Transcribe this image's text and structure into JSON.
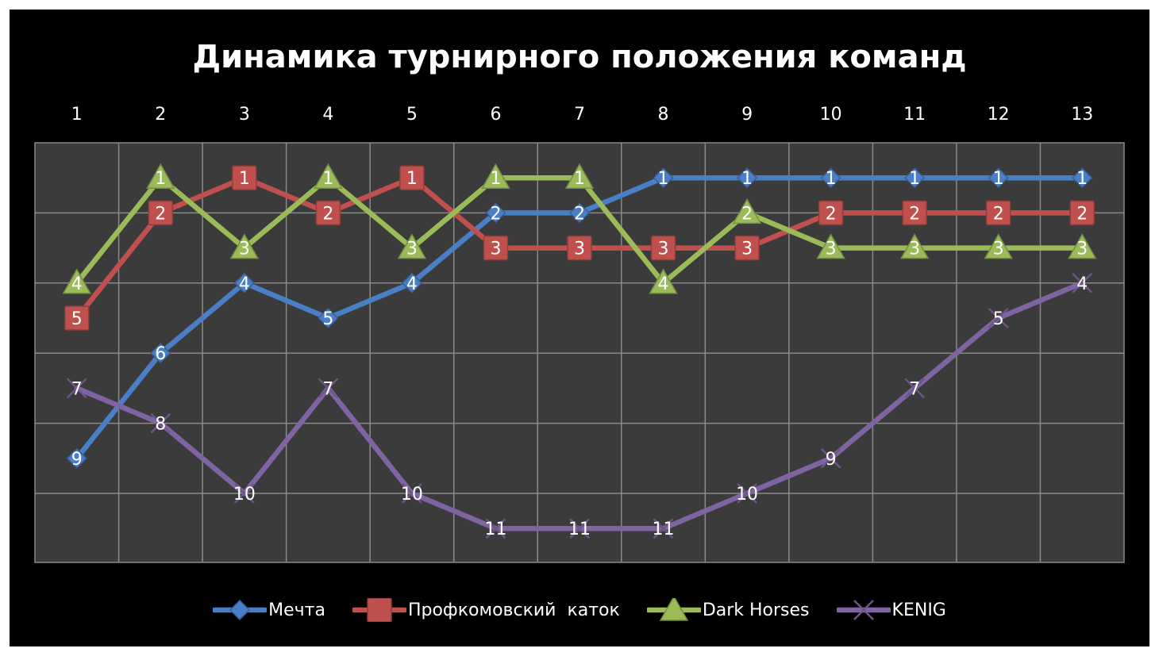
{
  "chart_data": {
    "type": "line",
    "title": "Динамика турнирного положения команд",
    "x": [
      "1",
      "2",
      "3",
      "4",
      "5",
      "6",
      "7",
      "8",
      "9",
      "10",
      "11",
      "12",
      "13"
    ],
    "ylim": [
      1,
      12
    ],
    "y_reversed": true,
    "grid": true,
    "legend_position": "bottom",
    "series": [
      {
        "name": "Мечта",
        "color": "#4a7ec6",
        "marker": "diamond",
        "values": [
          9,
          6,
          4,
          5,
          4,
          2,
          2,
          1,
          1,
          1,
          1,
          1,
          1
        ]
      },
      {
        "name": "Профкомовский  каток",
        "color": "#c0504d",
        "marker": "square",
        "values": [
          5,
          2,
          1,
          2,
          1,
          3,
          3,
          3,
          3,
          2,
          2,
          2,
          2
        ]
      },
      {
        "name": "Dark Horses",
        "color": "#9bbb59",
        "marker": "triangle",
        "values": [
          4,
          1,
          3,
          1,
          3,
          1,
          1,
          4,
          2,
          3,
          3,
          3,
          3
        ]
      },
      {
        "name": "KENIG",
        "color": "#8064a2",
        "marker": "x",
        "values": [
          7,
          8,
          10,
          7,
          10,
          11,
          11,
          11,
          10,
          9,
          7,
          5,
          4
        ]
      }
    ]
  }
}
